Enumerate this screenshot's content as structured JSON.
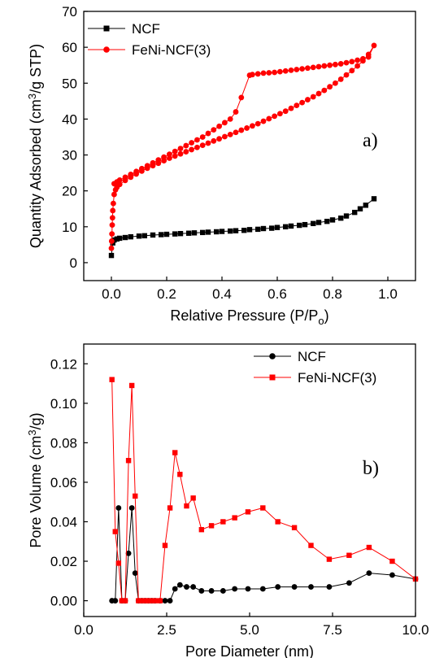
{
  "chart_data": [
    {
      "type": "scatter",
      "panel_label": "a)",
      "xlabel": "Relative Pressure (P/P",
      "xlabel_sub": "o",
      "xlabel_end": ")",
      "ylabel": "Quantity Adsorbed (cm",
      "ylabel_sup": "3",
      "ylabel_end": "/g STP)",
      "xlim": [
        -0.1,
        1.1
      ],
      "ylim": [
        -5,
        70
      ],
      "xticks": [
        0.0,
        0.2,
        0.4,
        0.6,
        0.8,
        1.0
      ],
      "xtick_labels": [
        "0.0",
        "0.2",
        "0.4",
        "0.6",
        "0.8",
        "1.0"
      ],
      "yticks": [
        0,
        10,
        20,
        30,
        40,
        50,
        60,
        70
      ],
      "ytick_labels": [
        "0",
        "10",
        "20",
        "30",
        "40",
        "50",
        "60",
        "70"
      ],
      "legend_position": "top-left",
      "series": [
        {
          "name": "NCF",
          "color": "#000000",
          "marker": "square",
          "x": [
            0.0,
            0.005,
            0.01,
            0.02,
            0.03,
            0.05,
            0.07,
            0.1,
            0.12,
            0.15,
            0.18,
            0.2,
            0.23,
            0.25,
            0.28,
            0.3,
            0.33,
            0.35,
            0.38,
            0.4,
            0.43,
            0.45,
            0.48,
            0.5,
            0.53,
            0.55,
            0.58,
            0.6,
            0.63,
            0.65,
            0.68,
            0.7,
            0.73,
            0.75,
            0.78,
            0.8,
            0.83,
            0.85,
            0.88,
            0.9,
            0.92,
            0.95
          ],
          "y": [
            2.0,
            5.5,
            6.3,
            6.6,
            6.8,
            7.0,
            7.2,
            7.4,
            7.5,
            7.7,
            7.8,
            7.9,
            8.0,
            8.1,
            8.2,
            8.3,
            8.4,
            8.5,
            8.6,
            8.7,
            8.8,
            8.9,
            9.0,
            9.2,
            9.3,
            9.5,
            9.6,
            9.8,
            10.0,
            10.2,
            10.4,
            10.6,
            10.9,
            11.2,
            11.5,
            11.9,
            12.4,
            13.0,
            14.0,
            15.0,
            16.0,
            17.8
          ]
        },
        {
          "name": "FeNi-NCF(3)",
          "color": "#ff0000",
          "marker": "circle",
          "x": [
            0.0,
            0.001,
            0.002,
            0.003,
            0.004,
            0.005,
            0.007,
            0.01,
            0.015,
            0.02,
            0.03,
            0.05,
            0.07,
            0.09,
            0.11,
            0.13,
            0.15,
            0.17,
            0.19,
            0.21,
            0.23,
            0.25,
            0.27,
            0.29,
            0.31,
            0.33,
            0.35,
            0.37,
            0.39,
            0.41,
            0.43,
            0.45,
            0.47,
            0.49,
            0.51,
            0.53,
            0.55,
            0.57,
            0.59,
            0.61,
            0.63,
            0.65,
            0.67,
            0.69,
            0.71,
            0.73,
            0.75,
            0.77,
            0.79,
            0.81,
            0.83,
            0.85,
            0.87,
            0.89,
            0.91,
            0.93,
            0.95,
            0.93,
            0.91,
            0.89,
            0.87,
            0.85,
            0.83,
            0.81,
            0.79,
            0.77,
            0.75,
            0.73,
            0.71,
            0.69,
            0.67,
            0.65,
            0.63,
            0.61,
            0.59,
            0.57,
            0.55,
            0.53,
            0.51,
            0.5,
            0.47,
            0.45,
            0.43,
            0.41,
            0.39,
            0.37,
            0.35,
            0.33,
            0.31,
            0.29,
            0.27,
            0.25,
            0.23,
            0.21,
            0.19,
            0.17,
            0.15,
            0.13,
            0.11,
            0.09,
            0.07,
            0.05,
            0.03,
            0.02,
            0.01
          ],
          "y": [
            4.0,
            6.0,
            8.0,
            10.5,
            12.5,
            14.5,
            16.5,
            19.0,
            20.3,
            21.0,
            21.8,
            22.9,
            23.8,
            24.7,
            25.5,
            26.3,
            27.0,
            27.7,
            28.4,
            29.1,
            29.7,
            30.3,
            30.9,
            31.5,
            32.1,
            32.7,
            33.3,
            33.9,
            34.5,
            35.1,
            35.7,
            36.3,
            36.9,
            37.5,
            38.1,
            38.7,
            39.4,
            40.1,
            40.8,
            41.5,
            42.2,
            43.0,
            43.8,
            44.6,
            45.4,
            46.2,
            47.1,
            48.0,
            49.0,
            50.0,
            51.1,
            52.3,
            53.5,
            54.8,
            56.2,
            58.0,
            60.5,
            57.3,
            56.8,
            56.4,
            56.0,
            55.7,
            55.4,
            55.2,
            55.0,
            54.8,
            54.6,
            54.4,
            54.2,
            54.0,
            53.8,
            53.6,
            53.4,
            53.2,
            53.0,
            52.9,
            52.8,
            52.6,
            52.4,
            52.2,
            46.0,
            42.0,
            40.0,
            39.0,
            38.0,
            37.0,
            36.0,
            35.0,
            34.2,
            33.4,
            32.6,
            31.8,
            31.0,
            30.2,
            29.4,
            28.6,
            27.8,
            27.0,
            26.2,
            25.4,
            24.6,
            23.8,
            23.0,
            22.5,
            22.0
          ]
        }
      ]
    },
    {
      "type": "line",
      "panel_label": "b)",
      "xlabel": "Pore Diameter (nm)",
      "ylabel": "Pore Volume (cm",
      "ylabel_sup": "3",
      "ylabel_end": "/g)",
      "xlim": [
        0.0,
        10.0
      ],
      "ylim": [
        -0.008,
        0.13
      ],
      "xticks": [
        0.0,
        2.5,
        5.0,
        7.5,
        10.0
      ],
      "xtick_labels": [
        "0.0",
        "2.5",
        "5.0",
        "7.5",
        "10.0"
      ],
      "yticks": [
        0.0,
        0.02,
        0.04,
        0.06,
        0.08,
        0.1,
        0.12
      ],
      "ytick_labels": [
        "0.00",
        "0.02",
        "0.04",
        "0.06",
        "0.08",
        "0.10",
        "0.12"
      ],
      "legend_position": "top-right",
      "series": [
        {
          "name": "NCF",
          "color": "#000000",
          "marker": "circle",
          "x": [
            0.85,
            0.95,
            1.05,
            1.15,
            1.25,
            1.35,
            1.45,
            1.55,
            1.65,
            1.75,
            1.85,
            1.95,
            2.05,
            2.15,
            2.3,
            2.45,
            2.6,
            2.75,
            2.9,
            3.1,
            3.3,
            3.55,
            3.85,
            4.2,
            4.55,
            4.95,
            5.4,
            5.85,
            6.35,
            6.85,
            7.4,
            8.0,
            8.6,
            9.3,
            10.0
          ],
          "y": [
            0.0,
            0.0,
            0.047,
            0.0,
            0.0,
            0.024,
            0.047,
            0.014,
            0.0,
            0.0,
            0.0,
            0.0,
            0.0,
            0.0,
            0.0,
            0.0,
            0.0,
            0.006,
            0.008,
            0.007,
            0.007,
            0.005,
            0.005,
            0.005,
            0.006,
            0.006,
            0.006,
            0.007,
            0.007,
            0.007,
            0.007,
            0.009,
            0.014,
            0.013,
            0.011
          ]
        },
        {
          "name": "FeNi-NCF(3)",
          "color": "#ff0000",
          "marker": "square",
          "x": [
            0.85,
            0.95,
            1.05,
            1.15,
            1.25,
            1.35,
            1.45,
            1.55,
            1.65,
            1.75,
            1.85,
            1.95,
            2.05,
            2.15,
            2.3,
            2.45,
            2.6,
            2.75,
            2.9,
            3.1,
            3.3,
            3.55,
            3.85,
            4.2,
            4.55,
            4.95,
            5.4,
            5.85,
            6.35,
            6.85,
            7.4,
            8.0,
            8.6,
            9.3,
            10.0
          ],
          "y": [
            0.112,
            0.035,
            0.019,
            0.0,
            0.0,
            0.071,
            0.109,
            0.053,
            0.0,
            0.0,
            0.0,
            0.0,
            0.0,
            0.0,
            0.0,
            0.028,
            0.047,
            0.075,
            0.064,
            0.048,
            0.052,
            0.036,
            0.038,
            0.04,
            0.042,
            0.045,
            0.047,
            0.04,
            0.037,
            0.028,
            0.021,
            0.023,
            0.027,
            0.02,
            0.011
          ]
        }
      ]
    }
  ]
}
